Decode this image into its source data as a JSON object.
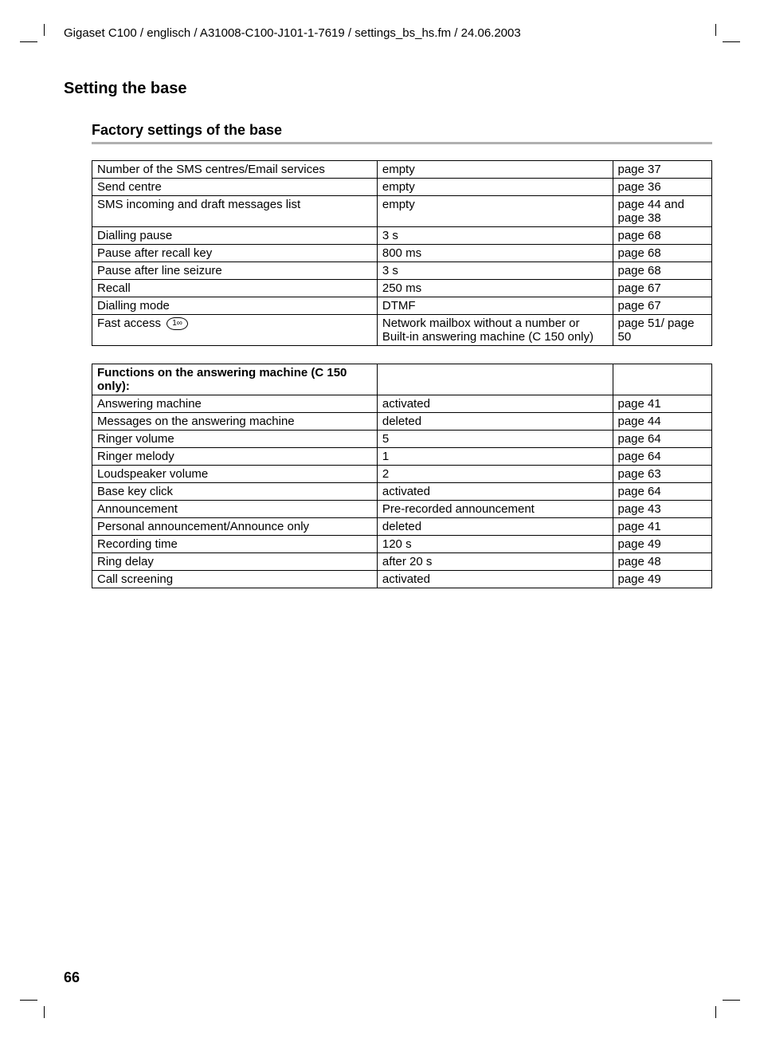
{
  "header": {
    "path": "Gigaset C100 / englisch / A31008-C100-J101-1-7619 / settings_bs_hs.fm / 24.06.2003"
  },
  "section_title": "Setting the base",
  "subsection_title": "Factory settings of the base",
  "table1": {
    "rows": [
      {
        "c1": "Number of the SMS centres/Email services",
        "c2": "empty",
        "c3": "page 37"
      },
      {
        "c1": "Send centre",
        "c2": "empty",
        "c3": "page 36"
      },
      {
        "c1": "SMS incoming and draft messages list",
        "c2": "empty",
        "c3": "page 44 and page 38"
      },
      {
        "c1": "Dialling pause",
        "c2": "3 s",
        "c3": "page 68"
      },
      {
        "c1": "Pause after recall key",
        "c2": "800 ms",
        "c3": "page 68"
      },
      {
        "c1": "Pause after line seizure",
        "c2": "3 s",
        "c3": "page 68"
      },
      {
        "c1": "Recall",
        "c2": "250 ms",
        "c3": "page 67"
      },
      {
        "c1": "Dialling mode",
        "c2": "DTMF",
        "c3": "page 67"
      },
      {
        "c1_pre": "Fast access ",
        "c1_icon": "1∞",
        "c2": "Network mailbox without a number or Built-in answering machine (C 150 only)",
        "c3": "page 51/ page 50"
      }
    ]
  },
  "table2": {
    "header": "Functions on the answering machine (C 150 only):",
    "rows": [
      {
        "c1": "Answering machine",
        "c2": "activated",
        "c3": "page 41"
      },
      {
        "c1": "Messages on the answering machine",
        "c2": "deleted",
        "c3": "page 44"
      },
      {
        "c1": "Ringer volume",
        "c2": "5",
        "c3": "page 64"
      },
      {
        "c1": "Ringer melody",
        "c2": "1",
        "c3": "page 64"
      },
      {
        "c1": "Loudspeaker volume",
        "c2": "2",
        "c3": "page 63"
      },
      {
        "c1": "Base key click",
        "c2": "activated",
        "c3": "page 64"
      },
      {
        "c1": "Announcement",
        "c2": "Pre-recorded announcement",
        "c3": "page 43"
      },
      {
        "c1": "Personal announcement/Announce only",
        "c2": "deleted",
        "c3": "page 41"
      },
      {
        "c1": "Recording time",
        "c2": "120 s",
        "c3": "page 49"
      },
      {
        "c1": "Ring delay",
        "c2": "after 20 s",
        "c3": "page 48"
      },
      {
        "c1": "Call screening",
        "c2": "activated",
        "c3": "page 49"
      }
    ]
  },
  "page_number": "66"
}
